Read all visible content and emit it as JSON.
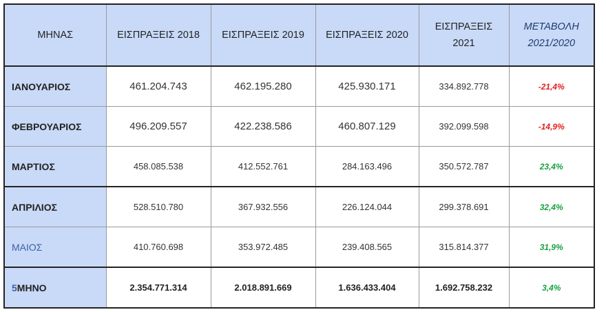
{
  "table": {
    "headers": [
      "ΜΗΝΑΣ",
      "ΕΙΣΠΡΑΞΕΙΣ 2018",
      "ΕΙΣΠΡΑΞΕΙΣ 2019",
      "ΕΙΣΠΡΑΞΕΙΣ 2020",
      "ΕΙΣΠΡΑΞΕΙΣ 2021",
      "ΜΕΤΑΒΟΛΗ 2021/2020"
    ],
    "rows": [
      [
        "ΙΑΝΟΥΑΡΙΟΣ",
        "461.204.743",
        "462.195.280",
        "425.930.171",
        "334.892.778",
        "-21,4%"
      ],
      [
        "ΦΕΒΡΟΥΑΡΙΟΣ",
        "496.209.557",
        "422.238.586",
        "460.807.129",
        "392.099.598",
        "-14,9%"
      ],
      [
        "ΜΑΡΤΙΟΣ",
        "458.085.538",
        "412.552.761",
        "284.163.496",
        "350.572.787",
        "23,4%"
      ],
      [
        "ΑΠΡΙΛΙΟΣ",
        "528.510.780",
        "367.932.556",
        "226.124.044",
        "299.378.691",
        "32,4%"
      ],
      [
        "ΜΑΙΟΣ",
        "410.760.698",
        "353.972.485",
        "239.408.565",
        "315.814.377",
        "31,9%"
      ],
      [
        "5ΜΗΝΟ",
        "2.354.771.314",
        "2.018.891.669",
        "1.636.433.404",
        "1.692.758.232",
        "3,4%"
      ]
    ]
  }
}
